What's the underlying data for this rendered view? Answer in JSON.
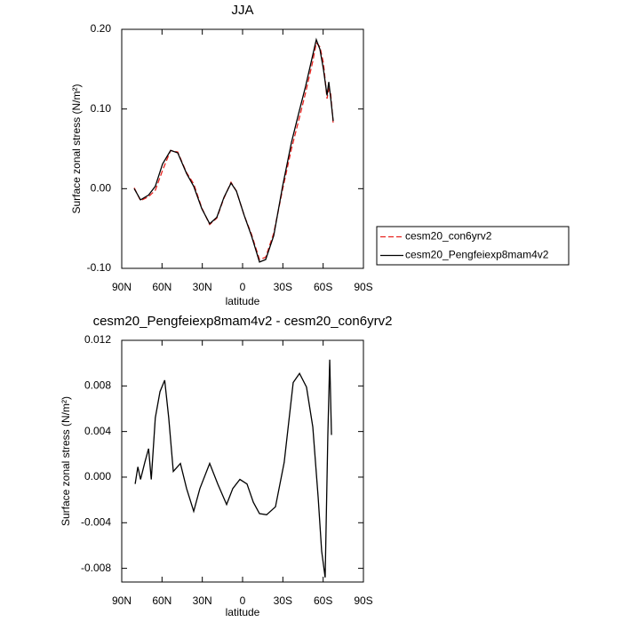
{
  "chart_data": [
    {
      "type": "line",
      "title": "JJA",
      "x_label": "latitude",
      "y_label": "Surface zonal stress (N/m²)",
      "xlim": [
        90,
        -90
      ],
      "ylim": [
        -0.1,
        0.2
      ],
      "xticks": [
        {
          "value": 90,
          "label": "90N"
        },
        {
          "value": 60,
          "label": "60N"
        },
        {
          "value": 30,
          "label": "30N"
        },
        0,
        {
          "value": -30,
          "label": "30S"
        },
        {
          "value": -60,
          "label": "60S"
        },
        {
          "value": -90,
          "label": "90S"
        }
      ],
      "yticks": [
        {
          "value": -0.1,
          "label": "-0.10"
        },
        {
          "value": 0.0,
          "label": "0.00"
        },
        {
          "value": 0.1,
          "label": "0.10"
        },
        {
          "value": 0.2,
          "label": "0.20"
        }
      ],
      "legend": "outside right",
      "x": [
        80.7,
        76,
        70,
        65,
        59.6,
        53.6,
        48.3,
        41.7,
        36.4,
        30.4,
        24.5,
        19.2,
        13.9,
        8.6,
        4.6,
        -1.3,
        -6.6,
        -12.6,
        -17.2,
        -23.2,
        -29.8,
        -36.4,
        -41.7,
        -47,
        -52.3,
        -54.9,
        -57.6,
        -60.2,
        -62.9,
        -64.2,
        -65.6,
        -67.5
      ],
      "series": [
        {
          "name": "cesm20_con6yrv2",
          "color": "#e8231f",
          "line_style": "dashed",
          "values": [
            0.001,
            -0.015,
            -0.01,
            -0.002,
            0.023,
            0.048,
            0.046,
            0.02,
            0.006,
            -0.024,
            -0.045,
            -0.037,
            -0.012,
            0.008,
            -0.003,
            -0.034,
            -0.057,
            -0.089,
            -0.086,
            -0.056,
            -0.001,
            0.05,
            0.085,
            0.121,
            0.16,
            0.183,
            0.178,
            0.158,
            0.113,
            0.125,
            0.119,
            0.082
          ]
        },
        {
          "name": "cesm20_Pengfeiexp8mam4v2",
          "color": "#000000",
          "line_style": "solid",
          "values": [
            0.0,
            -0.014,
            -0.008,
            0.003,
            0.031,
            0.048,
            0.045,
            0.019,
            0.003,
            -0.025,
            -0.044,
            -0.036,
            -0.011,
            0.007,
            -0.003,
            -0.034,
            -0.059,
            -0.092,
            -0.089,
            -0.059,
            0.003,
            0.058,
            0.094,
            0.129,
            0.168,
            0.187,
            0.175,
            0.15,
            0.117,
            0.134,
            0.114,
            0.085
          ]
        }
      ]
    },
    {
      "type": "line",
      "title": "cesm20_Pengfeiexp8mam4v2 - cesm20_con6yrv2",
      "x_label": "latitude",
      "y_label": "Surface zonal stress (N/m²)",
      "xlim": [
        90,
        -90
      ],
      "ylim": [
        -0.0092,
        0.012
      ],
      "xticks": [
        {
          "value": 90,
          "label": "90N"
        },
        {
          "value": 60,
          "label": "60N"
        },
        {
          "value": 30,
          "label": "30N"
        },
        0,
        {
          "value": -30,
          "label": "30S"
        },
        {
          "value": -60,
          "label": "60S"
        },
        {
          "value": -90,
          "label": "90S"
        }
      ],
      "yticks": [
        -0.008,
        -0.004,
        {
          "value": 0.0,
          "label": "0.000"
        },
        0.004,
        0.008,
        0.012
      ],
      "x": [
        80,
        78,
        76,
        72.8,
        70,
        68,
        65,
        61.5,
        58,
        55,
        51.6,
        46.3,
        41.7,
        36.4,
        31.8,
        24.5,
        18.5,
        11.9,
        7.3,
        2,
        -3.3,
        -8,
        -12.6,
        -17.9,
        -24.5,
        -31,
        -37.7,
        -42.4,
        -47.6,
        -52.3,
        -56.3,
        -58.9,
        -61.5,
        -63.5,
        -64.9,
        -66.2
      ],
      "series": [
        {
          "color": "#000000",
          "line_style": "solid",
          "values": [
            -0.0006,
            0.0009,
            -0.0002,
            0.0013,
            0.0025,
            -0.0002,
            0.0052,
            0.0075,
            0.0085,
            0.0052,
            0.0005,
            0.0012,
            -0.001,
            -0.003,
            -0.001,
            0.0012,
            -0.0006,
            -0.0024,
            -0.001,
            -0.0002,
            -0.0006,
            -0.0022,
            -0.0032,
            -0.0033,
            -0.0026,
            0.0013,
            0.0083,
            0.0091,
            0.0079,
            0.0044,
            -0.0018,
            -0.0065,
            -0.0088,
            0.0037,
            0.0103,
            0.0037
          ]
        }
      ]
    }
  ]
}
